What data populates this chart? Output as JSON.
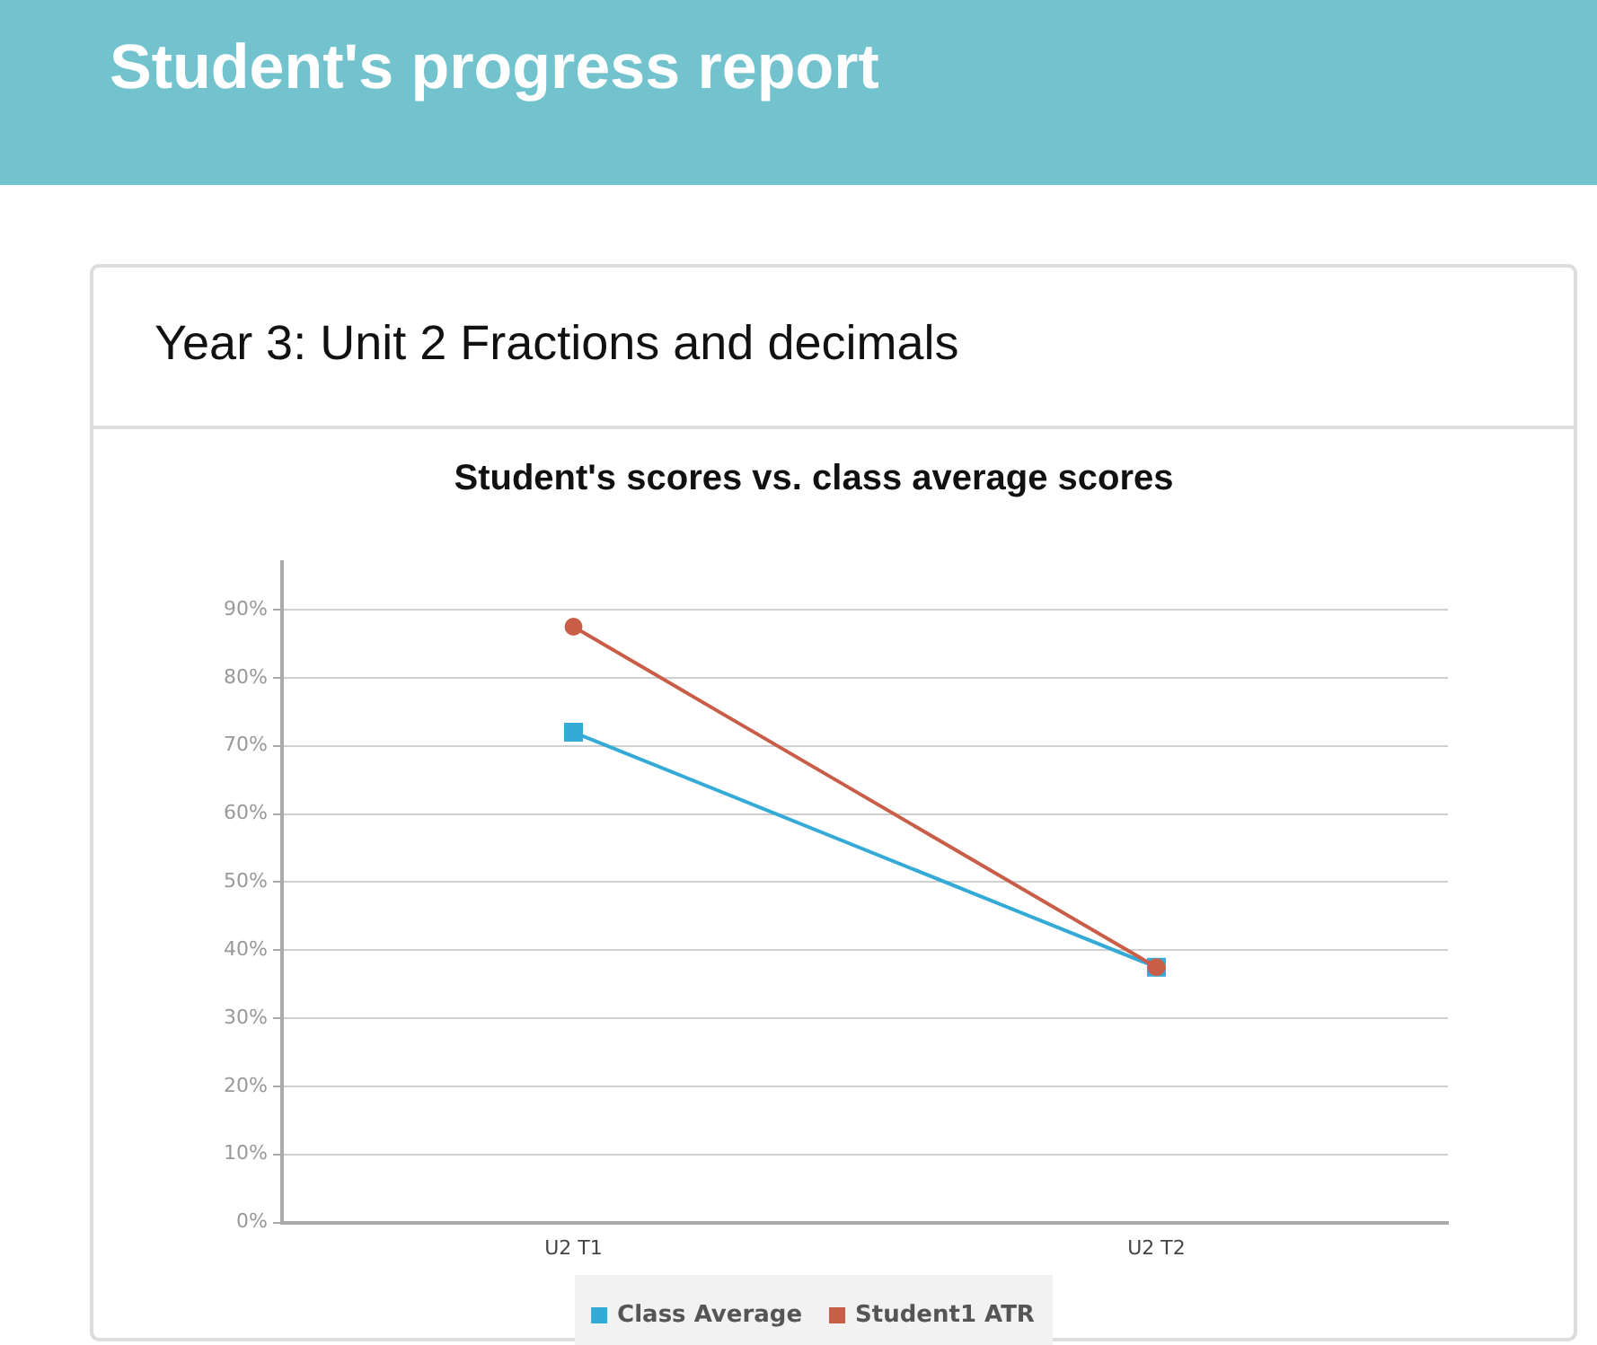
{
  "chart_data": {
    "type": "line",
    "title": "Student's scores vs. class average scores",
    "annotations": [
      "Student's progress report",
      "Year 3: Unit 2 Fractions and decimals"
    ],
    "categories": [
      "U2 T1",
      "U2 T2"
    ],
    "series": [
      {
        "name": "Class Average",
        "color": "#34aad6",
        "values": [
          72,
          37.5
        ],
        "marker": "square"
      },
      {
        "name": "Student1 ATR",
        "color": "#c95e48",
        "values": [
          87.5,
          37.5
        ],
        "marker": "circle"
      }
    ],
    "ylim": [
      0,
      97
    ],
    "yticks": [
      {
        "value": 0,
        "label": "0%"
      },
      {
        "value": 10,
        "label": "10%"
      },
      {
        "value": 20,
        "label": "20%"
      },
      {
        "value": 30,
        "label": "30%"
      },
      {
        "value": 40,
        "label": "40%"
      },
      {
        "value": 50,
        "label": "50%"
      },
      {
        "value": 60,
        "label": "60%"
      },
      {
        "value": 70,
        "label": "70%"
      },
      {
        "value": 80,
        "label": "80%"
      },
      {
        "value": 90,
        "label": "90%"
      }
    ],
    "grid": "y",
    "legend": "bottom",
    "line_style": "solid"
  }
}
